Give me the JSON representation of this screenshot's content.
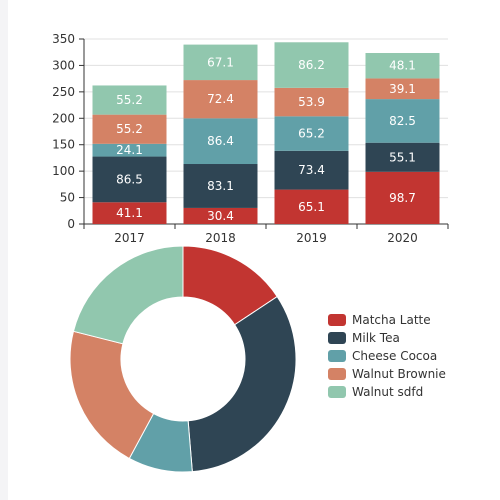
{
  "chart_data": [
    {
      "type": "bar",
      "stacked": true,
      "categories": [
        "2017",
        "2018",
        "2019",
        "2020"
      ],
      "series": [
        {
          "name": "Matcha Latte",
          "color": "#c23531",
          "values": [
            41.1,
            30.4,
            65.1,
            98.7
          ]
        },
        {
          "name": "Milk Tea",
          "color": "#2f4554",
          "values": [
            86.5,
            83.1,
            73.4,
            55.1
          ]
        },
        {
          "name": "Cheese Cocoa",
          "color": "#61a0a8",
          "values": [
            24.1,
            86.4,
            65.2,
            82.5
          ]
        },
        {
          "name": "Walnut Brownie",
          "color": "#d48265",
          "values": [
            55.2,
            72.4,
            53.9,
            39.1
          ]
        },
        {
          "name": "Walnut sdfd",
          "color": "#91c7ae",
          "values": [
            55.2,
            67.1,
            86.2,
            48.1
          ]
        }
      ],
      "ylim": [
        0,
        350
      ],
      "yticks": [
        "0",
        "50",
        "100",
        "150",
        "200",
        "250",
        "300",
        "350"
      ],
      "grid": true
    },
    {
      "type": "pie",
      "donut": true,
      "labels": [
        "Matcha Latte",
        "Milk Tea",
        "Cheese Cocoa",
        "Walnut Brownie",
        "Walnut sdfd"
      ],
      "values": [
        41.1,
        86.5,
        24.1,
        55.2,
        55.2
      ],
      "colors": [
        "#c23531",
        "#2f4554",
        "#61a0a8",
        "#d48265",
        "#91c7ae"
      ],
      "legend_position": "right"
    }
  ]
}
